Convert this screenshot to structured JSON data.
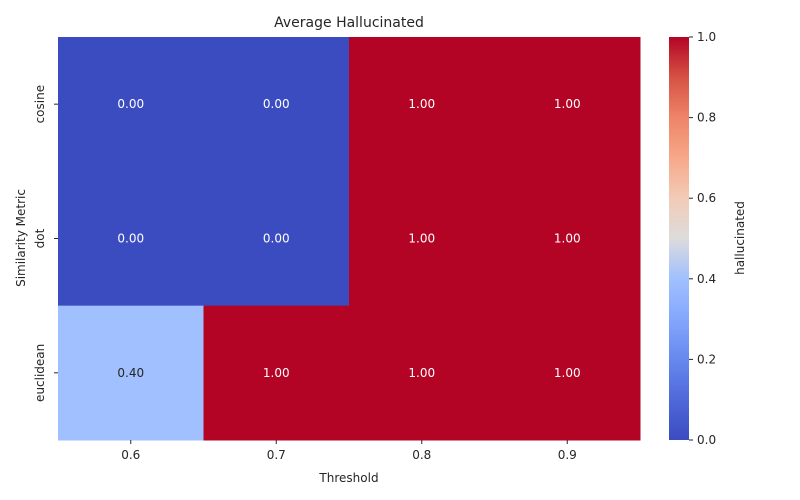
{
  "chart_data": {
    "type": "heatmap",
    "title": "Average Hallucinated",
    "xlabel": "Threshold",
    "ylabel": "Similarity Metric",
    "x_categories": [
      "0.6",
      "0.7",
      "0.8",
      "0.9"
    ],
    "y_categories": [
      "cosine",
      "dot",
      "euclidean"
    ],
    "values": [
      [
        0.0,
        0.0,
        1.0,
        1.0
      ],
      [
        0.0,
        0.0,
        1.0,
        1.0
      ],
      [
        0.4,
        1.0,
        1.0,
        1.0
      ]
    ],
    "value_labels": [
      [
        "0.00",
        "0.00",
        "1.00",
        "1.00"
      ],
      [
        "0.00",
        "0.00",
        "1.00",
        "1.00"
      ],
      [
        "0.40",
        "1.00",
        "1.00",
        "1.00"
      ]
    ],
    "colorbar": {
      "label": "hallucinated",
      "range": [
        0.0,
        1.0
      ],
      "ticks": [
        "0.0",
        "0.2",
        "0.4",
        "0.6",
        "0.8",
        "1.0"
      ],
      "colormap": "coolwarm"
    },
    "grid": false
  }
}
